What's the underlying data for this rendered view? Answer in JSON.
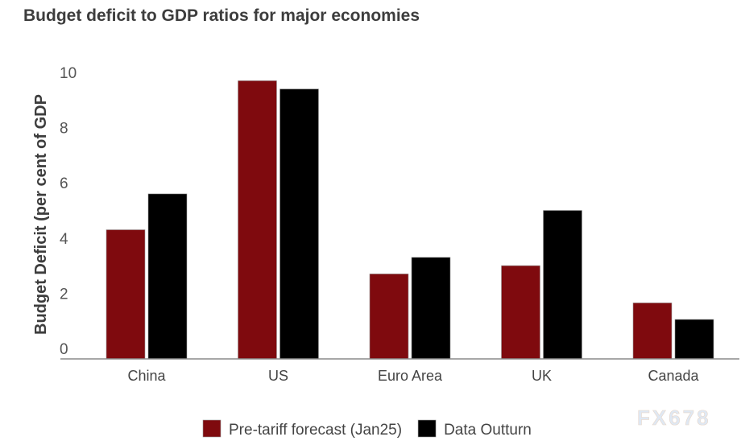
{
  "chart_data": {
    "type": "bar",
    "title": "Budget deficit to GDP ratios for major economies",
    "xlabel": "",
    "ylabel": "Budget Deficit (per cent of GDP",
    "ylim": [
      0,
      10
    ],
    "yticks": [
      0,
      2,
      4,
      6,
      8,
      10
    ],
    "grid": false,
    "legend_position": "bottom",
    "categories": [
      "China",
      "US",
      "Euro Area",
      "UK",
      "Canada"
    ],
    "series": [
      {
        "name": "Pre-tariff forecast (Jan25)",
        "color": "#7f0a0e",
        "values": [
          4.3,
          9.7,
          2.7,
          3.0,
          1.65
        ]
      },
      {
        "name": "Data Outturn",
        "color": "#000000",
        "values": [
          5.6,
          9.4,
          3.3,
          5.0,
          1.05
        ]
      }
    ],
    "watermark": "FX678"
  }
}
